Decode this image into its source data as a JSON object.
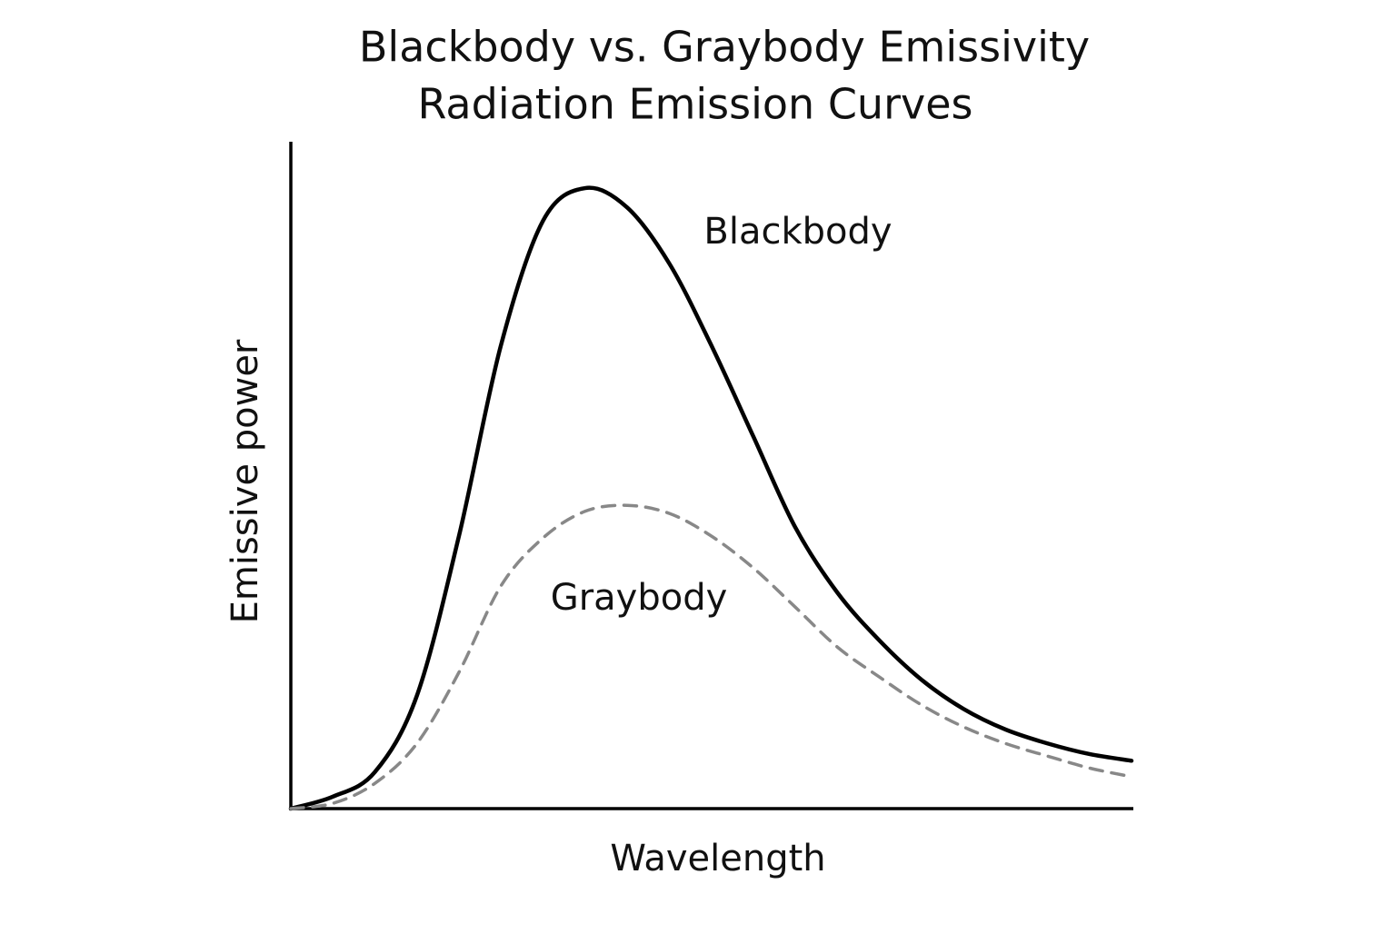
{
  "chart_data": {
    "type": "line",
    "title": "Blackbody vs. Graybody Emissivity",
    "subtitle": "Radiation Emission Curves",
    "x_label": "Wavelength",
    "y_label": "Emissive power",
    "annotations": [
      "Blackbody",
      "Graybody"
    ],
    "x": [
      0,
      5,
      10,
      15,
      20,
      25,
      30,
      35,
      40,
      45,
      50,
      55,
      60,
      65,
      70,
      75,
      80,
      85,
      90,
      95,
      100
    ],
    "series": [
      {
        "name": "Blackbody",
        "color": "#000000",
        "dashed": false,
        "values": [
          0,
          1.8,
          5.5,
          17,
          41,
          69.7,
          88.4,
          93.3,
          90.4,
          82,
          69.7,
          56,
          42.3,
          32.5,
          25.3,
          19.4,
          15,
          11.9,
          9.8,
          8.2,
          7.2
        ]
      },
      {
        "name": "Graybody",
        "color": "#888888",
        "dashed": true,
        "values": [
          0,
          0.8,
          3.8,
          9.8,
          20.5,
          33.5,
          40.7,
          44.7,
          45.6,
          44.4,
          41,
          36.2,
          30.3,
          24.3,
          19.8,
          15.6,
          12.3,
          9.8,
          7.9,
          6.1,
          4.8
        ]
      }
    ],
    "xlim": [
      0,
      100
    ],
    "ylim": [
      0,
      100
    ],
    "grid": false
  }
}
